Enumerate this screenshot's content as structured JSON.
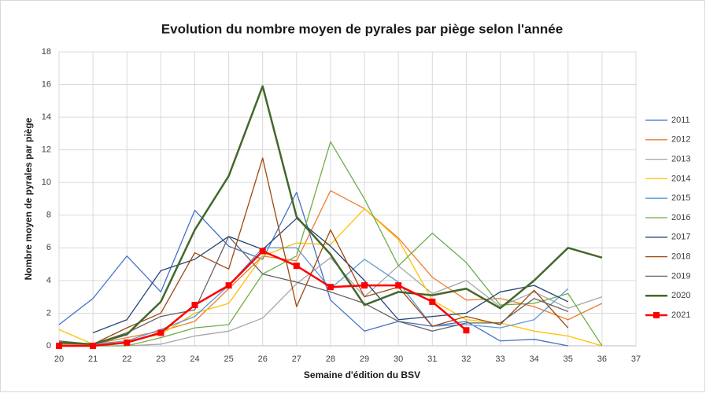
{
  "chart_data": {
    "type": "line",
    "title": "Evolution du nombre moyen de pyrales par piège selon l'année",
    "x_label": "Semaine d'édition du BSV",
    "y_label": "Nombre moyen de pyrales par piège",
    "x": [
      20,
      21,
      22,
      23,
      24,
      25,
      26,
      27,
      28,
      29,
      30,
      31,
      32,
      33,
      34,
      35,
      36
    ],
    "xlim": [
      20,
      37
    ],
    "xticks": [
      20,
      21,
      22,
      23,
      24,
      25,
      26,
      27,
      28,
      29,
      30,
      31,
      32,
      33,
      34,
      35,
      36,
      37
    ],
    "ylim": [
      0,
      18
    ],
    "yticks": [
      0,
      2,
      4,
      6,
      8,
      10,
      12,
      14,
      16,
      18
    ],
    "grid": true,
    "legend": "right",
    "series": [
      {
        "name": "2011",
        "color": "#4472c4",
        "values": [
          1.3,
          2.9,
          5.5,
          3.3,
          8.3,
          6.1,
          5.3,
          9.4,
          2.8,
          0.9,
          1.5,
          1.2,
          1.5,
          0.3,
          0.4,
          0,
          null
        ]
      },
      {
        "name": "2012",
        "color": "#ed7d31",
        "values": [
          0.1,
          0.1,
          0.5,
          0.9,
          1.5,
          3.5,
          5.5,
          5.2,
          9.5,
          8.4,
          6.6,
          4.2,
          2.8,
          2.9,
          2.4,
          1.6,
          2.6
        ]
      },
      {
        "name": "2013",
        "color": "#a5a5a5",
        "values": [
          0,
          0,
          0,
          0.1,
          0.6,
          0.9,
          1.7,
          3.8,
          5.4,
          3,
          4.9,
          3.2,
          4,
          2.4,
          3.3,
          2.3,
          3
        ]
      },
      {
        "name": "2014",
        "color": "#ffc000",
        "values": [
          1,
          0.1,
          0.3,
          0.7,
          2,
          2.6,
          5.5,
          6.3,
          6.2,
          8.4,
          6.5,
          2.8,
          1.6,
          1.4,
          0.9,
          0.6,
          0
        ]
      },
      {
        "name": "2015",
        "color": "#5b9bd5",
        "values": [
          null,
          0.1,
          0.3,
          1,
          1.8,
          3.7,
          6,
          6,
          3.5,
          5.3,
          3.9,
          1.2,
          1.3,
          1.1,
          1.6,
          3.5,
          null
        ]
      },
      {
        "name": "2016",
        "color": "#70ad47",
        "values": [
          0,
          0,
          0,
          0.5,
          1.1,
          1.3,
          4.4,
          5.5,
          12.5,
          9,
          4.9,
          6.9,
          5.1,
          2.5,
          2.6,
          3.2,
          0
        ]
      },
      {
        "name": "2017",
        "color": "#264478",
        "values": [
          null,
          0.8,
          1.6,
          4.6,
          5.3,
          6.7,
          5.9,
          7.8,
          6.1,
          4,
          1.6,
          1.8,
          2,
          3.3,
          3.7,
          2.7,
          null
        ]
      },
      {
        "name": "2018",
        "color": "#9e480e",
        "values": [
          0.2,
          0.1,
          1.1,
          2,
          5.7,
          4.7,
          11.5,
          2.4,
          7.1,
          3,
          3.6,
          1.2,
          1.8,
          1.3,
          3.4,
          1.1,
          null
        ]
      },
      {
        "name": "2019",
        "color": "#636363",
        "values": [
          0.3,
          0.1,
          0.8,
          1.8,
          2.2,
          6.7,
          4.4,
          3.9,
          3.3,
          2.6,
          1.5,
          0.9,
          1.4,
          1.4,
          2.9,
          2.1,
          null
        ]
      },
      {
        "name": "2020",
        "color": "#43682b",
        "line_width": 2.5,
        "values": [
          0.2,
          0.1,
          0.7,
          2.7,
          7.1,
          10.4,
          15.9,
          7.9,
          5.6,
          2.5,
          3.3,
          3.1,
          3.5,
          2.3,
          4,
          6,
          5.4
        ]
      },
      {
        "name": "2021",
        "color": "#ff0000",
        "line_width": 2.5,
        "marker": "square",
        "values": [
          0,
          0,
          0.2,
          0.8,
          2.5,
          3.7,
          5.8,
          4.9,
          3.6,
          3.7,
          3.7,
          2.7,
          0.95,
          null,
          null,
          null,
          null
        ]
      }
    ]
  }
}
